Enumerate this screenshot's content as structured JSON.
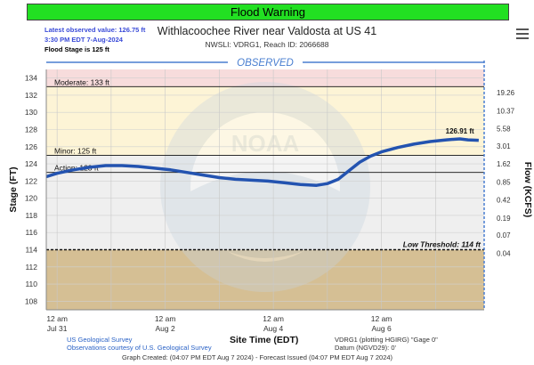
{
  "banner": "Flood Warning",
  "latest": {
    "line1": "Latest observed value: 126.75 ft",
    "line2": "3:30 PM EDT 7-Aug-2024",
    "line3": "Flood Stage is 125 ft"
  },
  "title": "Withlacoochee River near Valdosta at US 41",
  "subtitle": "NWSLI: VDRG1, Reach ID: 2066688",
  "observed_label": "OBSERVED",
  "footer": {
    "src1": "US Geological Survey",
    "src2": "Observations courtesy of U.S. Geological Survey",
    "xlabel": "Site Time (EDT)",
    "plotting": "VDRG1 (plotting HGIRG) \"Gage 0\"",
    "datum": "Datum (NGVD29): 0'",
    "created": "Graph Created: (04:07 PM EDT Aug 7 2024) - Forecast Issued (04:07 PM EDT Aug 7 2024)"
  },
  "colors": {
    "moderate_zone": "#f7dcdc",
    "minor_zone": "#fdf4d6",
    "normal_zone": "#efefef",
    "low_zone": "#d5bf94",
    "line": "#2353b0",
    "banner": "#22e022"
  },
  "chart_data": {
    "type": "line",
    "ylabel": "Stage (FT)",
    "y2label": "Flow (KCFS)",
    "xlabel": "Site Time (EDT)",
    "ylim": [
      107,
      135
    ],
    "xlim": [
      -0.2,
      7.9
    ],
    "y_ticks": [
      108,
      110,
      112,
      114,
      116,
      118,
      120,
      122,
      124,
      126,
      128,
      130,
      132,
      134
    ],
    "x_ticks": [
      {
        "x": 0,
        "l1": "12 am",
        "l2": "Jul 31"
      },
      {
        "x": 2,
        "l1": "12 am",
        "l2": "Aug 2"
      },
      {
        "x": 4,
        "l1": "12 am",
        "l2": "Aug 4"
      },
      {
        "x": 6,
        "l1": "12 am",
        "l2": "Aug 6"
      }
    ],
    "flow_ticks": [
      {
        "stage": 132.3,
        "label": "19.26"
      },
      {
        "stage": 130.2,
        "label": "10.37"
      },
      {
        "stage": 128.1,
        "label": "5.58"
      },
      {
        "stage": 126.1,
        "label": "3.01"
      },
      {
        "stage": 124.0,
        "label": "1.62"
      },
      {
        "stage": 121.9,
        "label": "0.85"
      },
      {
        "stage": 119.8,
        "label": "0.42"
      },
      {
        "stage": 117.7,
        "label": "0.19"
      },
      {
        "stage": 115.7,
        "label": "0.07"
      },
      {
        "stage": 113.6,
        "label": "0.04"
      }
    ],
    "thresholds": [
      {
        "name": "Moderate",
        "value": 133,
        "label": "Moderate: 133 ft"
      },
      {
        "name": "Minor",
        "value": 125,
        "label": "Minor: 125 ft"
      },
      {
        "name": "Action",
        "value": 123,
        "label": "Action: 123 ft"
      },
      {
        "name": "Low",
        "value": 114,
        "label": "Low Threshold: 114 ft"
      }
    ],
    "peak_label": "126.91 ft",
    "peak": {
      "x": 7.45,
      "y": 126.91
    },
    "series": [
      {
        "x": [
          -0.2,
          0.0,
          0.3,
          0.6,
          0.9,
          1.2,
          1.5,
          1.8,
          2.1,
          2.4,
          2.7,
          3.0,
          3.3,
          3.6,
          3.9,
          4.2,
          4.5,
          4.8,
          5.0,
          5.2,
          5.4,
          5.6,
          5.8,
          6.0,
          6.3,
          6.6,
          6.9,
          7.2,
          7.45,
          7.6,
          7.8
        ],
        "y": [
          122.5,
          122.9,
          123.3,
          123.6,
          123.8,
          123.8,
          123.7,
          123.5,
          123.3,
          123.0,
          122.7,
          122.4,
          122.2,
          122.1,
          122.0,
          121.8,
          121.6,
          121.5,
          121.7,
          122.2,
          123.2,
          124.2,
          124.9,
          125.4,
          125.9,
          126.3,
          126.6,
          126.8,
          126.91,
          126.8,
          126.75
        ]
      }
    ]
  }
}
